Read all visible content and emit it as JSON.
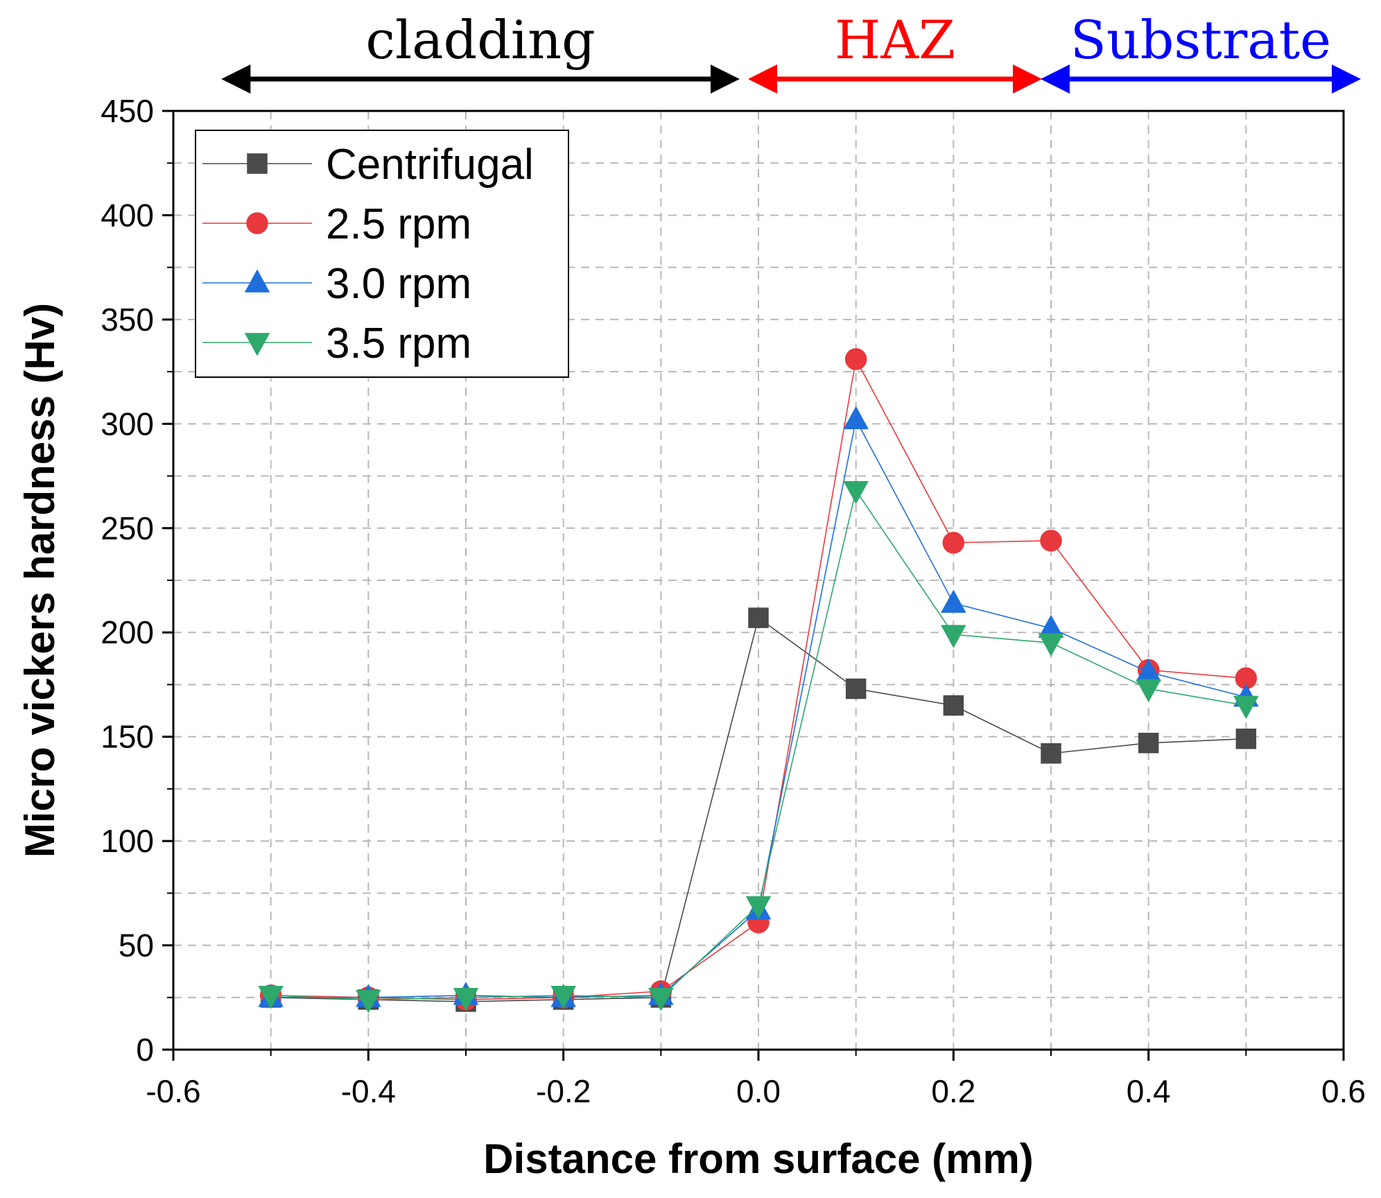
{
  "chart_data": {
    "type": "line",
    "xlabel": "Distance from surface (mm)",
    "ylabel": "Micro vickers hardness (Hv)",
    "xlim": [
      -0.6,
      0.6
    ],
    "ylim": [
      0,
      450
    ],
    "x_ticks": [
      -0.6,
      -0.4,
      -0.2,
      0.0,
      0.2,
      0.4,
      0.6
    ],
    "x_tick_labels": [
      "-0.6",
      "-0.4",
      "-0.2",
      "0.0",
      "0.2",
      "0.4",
      "0.6"
    ],
    "y_ticks": [
      0,
      50,
      100,
      150,
      200,
      250,
      300,
      350,
      400,
      450
    ],
    "y_tick_labels": [
      "0",
      "50",
      "100",
      "150",
      "200",
      "250",
      "300",
      "350",
      "400",
      "450"
    ],
    "grid": true,
    "legend_position": "top-left",
    "x": [
      -0.5,
      -0.4,
      -0.3,
      -0.2,
      -0.1,
      0.0,
      0.1,
      0.2,
      0.3,
      0.4,
      0.5
    ],
    "series": [
      {
        "name": "Centrifugal",
        "color": "#4a4a4a",
        "marker": "square",
        "values": [
          25,
          24,
          23,
          24,
          25,
          207,
          173,
          165,
          142,
          147,
          149
        ]
      },
      {
        "name": "2.5 rpm",
        "color": "#e8383d",
        "marker": "circle",
        "values": [
          26,
          25,
          24,
          25,
          28,
          61,
          331,
          243,
          244,
          182,
          178
        ]
      },
      {
        "name": "3.0 rpm",
        "color": "#1e6fdc",
        "marker": "triangle-up",
        "values": [
          25,
          25,
          26,
          25,
          26,
          67,
          302,
          214,
          202,
          181,
          169
        ]
      },
      {
        "name": "3.5 rpm",
        "color": "#2ea86b",
        "marker": "triangle-down",
        "values": [
          26,
          24,
          25,
          26,
          25,
          69,
          268,
          199,
          195,
          173,
          165
        ]
      }
    ],
    "regions": [
      {
        "label": "cladding",
        "color": "#000000",
        "x_from": -0.55,
        "x_to": -0.02
      },
      {
        "label": "HAZ",
        "color": "#ff0000",
        "x_from": -0.01,
        "x_to": 0.29
      },
      {
        "label": "Substrate",
        "color": "#0000ff",
        "x_from": 0.29,
        "x_to": 0.62
      }
    ]
  }
}
